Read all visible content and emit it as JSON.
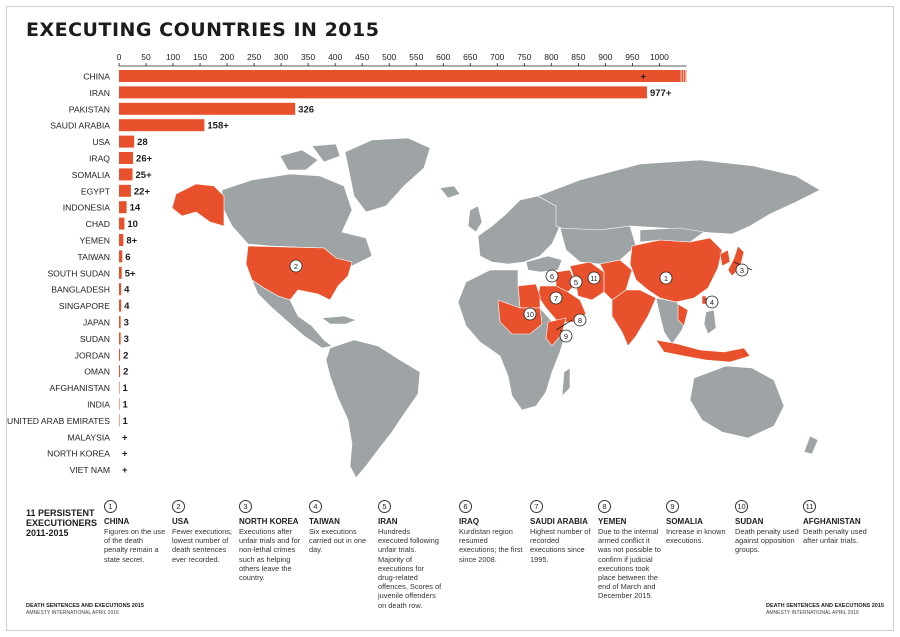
{
  "title": "EXECUTING COUNTRIES IN 2015",
  "colors": {
    "accent": "#e8512b",
    "land": "#9ea3a6",
    "border": "#ffffff",
    "text": "#1c1c1c"
  },
  "chart_data": {
    "type": "bar",
    "orientation": "horizontal",
    "title": "EXECUTING COUNTRIES IN 2015",
    "xlim": [
      0,
      1050
    ],
    "ticks": [
      0,
      50,
      100,
      150,
      200,
      250,
      300,
      350,
      400,
      450,
      500,
      550,
      600,
      650,
      700,
      750,
      800,
      850,
      900,
      950,
      1000
    ],
    "categories": [
      "CHINA",
      "IRAN",
      "PAKISTAN",
      "SAUDI ARABIA",
      "USA",
      "IRAQ",
      "SOMALIA",
      "EGYPT",
      "INDONESIA",
      "CHAD",
      "YEMEN",
      "TAIWAN",
      "SOUTH SUDAN",
      "BANGLADESH",
      "SINGAPORE",
      "JAPAN",
      "SUDAN",
      "JORDAN",
      "OMAN",
      "AFGHANISTAN",
      "INDIA",
      "UNITED ARAB EMIRATES",
      "MALAYSIA",
      "NORTH KOREA",
      "VIET NAM"
    ],
    "values": [
      1050,
      977,
      326,
      158,
      28,
      26,
      25,
      22,
      14,
      10,
      8,
      6,
      5,
      4,
      4,
      3,
      3,
      2,
      2,
      1,
      1,
      1,
      0,
      0,
      0
    ],
    "value_labels": [
      "+",
      "977+",
      "326",
      "158+",
      "28",
      "26+",
      "25+",
      "22+",
      "14",
      "10",
      "8+",
      "6",
      "5+",
      "4",
      "4",
      "3",
      "3",
      "2",
      "2",
      "1",
      "1",
      "1",
      "+",
      "+",
      "+"
    ],
    "grid": false,
    "legend": "none"
  },
  "map": {
    "callouts": [
      {
        "n": "1",
        "country": "China"
      },
      {
        "n": "2",
        "country": "USA"
      },
      {
        "n": "3",
        "country": "North Korea"
      },
      {
        "n": "4",
        "country": "Taiwan"
      },
      {
        "n": "5",
        "country": "Iran"
      },
      {
        "n": "6",
        "country": "Iraq"
      },
      {
        "n": "7",
        "country": "Saudi Arabia"
      },
      {
        "n": "8",
        "country": "Yemen"
      },
      {
        "n": "9",
        "country": "Somalia"
      },
      {
        "n": "10",
        "country": "Sudan"
      },
      {
        "n": "11",
        "country": "Afghanistan"
      }
    ]
  },
  "legend": {
    "title": "11 PERSISTENT EXECUTIONERS 2011-2015",
    "items": [
      {
        "n": "1",
        "country": "CHINA",
        "desc": "Figures on the use of the death penalty remain a state secret."
      },
      {
        "n": "2",
        "country": "USA",
        "desc": "Fewer executions; lowest number of death sentences ever recorded."
      },
      {
        "n": "3",
        "country": "NORTH KOREA",
        "desc": "Executions after unfair trials and for non-lethal crimes such as helping others leave the country."
      },
      {
        "n": "4",
        "country": "TAIWAN",
        "desc": "Six executions carried out in one day."
      },
      {
        "n": "5",
        "country": "IRAN",
        "desc": "Hundreds executed following unfair trials. Majority of executions for drug-related offences. Scores of juvenile offenders on death row."
      },
      {
        "n": "6",
        "country": "IRAQ",
        "desc": "Kurdistan region resumed executions; the first since 2008."
      },
      {
        "n": "7",
        "country": "SAUDI ARABIA",
        "desc": "Highest number of recorded executions since 1995."
      },
      {
        "n": "8",
        "country": "YEMEN",
        "desc": "Due to the internal armed conflict it was not possible to confirm if judicial executions took place between the end of March and December 2015."
      },
      {
        "n": "9",
        "country": "SOMALIA",
        "desc": "Increase in known executions."
      },
      {
        "n": "10",
        "country": "SUDAN",
        "desc": "Death penalty used against opposition groups."
      },
      {
        "n": "11",
        "country": "AFGHANISTAN",
        "desc": "Death penalty used after unfair trials."
      }
    ]
  },
  "footer": {
    "left_a": "DEATH SENTENCES AND EXECUTIONS 2015",
    "left_b": "AMNESTY INTERNATIONAL APRIL 2016",
    "right_a": "DEATH SENTENCES AND EXECUTIONS 2015",
    "right_b": "AMNESTY INTERNATIONAL APRIL 2016"
  }
}
